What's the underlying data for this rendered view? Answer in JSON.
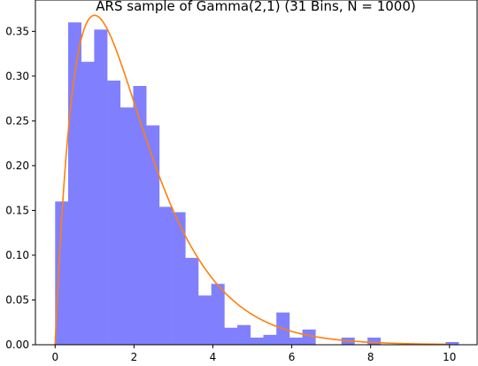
{
  "chart_data": {
    "type": "bar",
    "title": "ARS sample of Gamma(2,1) (31 Bins, N = 1000)",
    "xlabel": "",
    "ylabel": "",
    "xlim": [
      -0.5,
      10.7
    ],
    "ylim": [
      0,
      0.385
    ],
    "x_ticks": [
      0,
      2,
      4,
      6,
      8,
      10
    ],
    "y_ticks": [
      0.0,
      0.05,
      0.1,
      0.15,
      0.2,
      0.25,
      0.3,
      0.35
    ],
    "grid": false,
    "legend": "none",
    "series": [
      {
        "kind": "histogram",
        "color": "#8080ff",
        "bin_start": 0.0,
        "bin_width": 0.33,
        "values": [
          0.16,
          0.36,
          0.316,
          0.352,
          0.295,
          0.265,
          0.289,
          0.245,
          0.154,
          0.148,
          0.097,
          0.055,
          0.068,
          0.019,
          0.022,
          0.008,
          0.011,
          0.036,
          0.008,
          0.017,
          0.0,
          0.0,
          0.008,
          0.0,
          0.008,
          0.0,
          0.0,
          0.0,
          0.0,
          0.0,
          0.003
        ]
      },
      {
        "kind": "pdf-curve",
        "color": "#ff7f0e",
        "formula": "x*exp(-x)",
        "x_range": [
          0,
          10
        ]
      }
    ]
  }
}
